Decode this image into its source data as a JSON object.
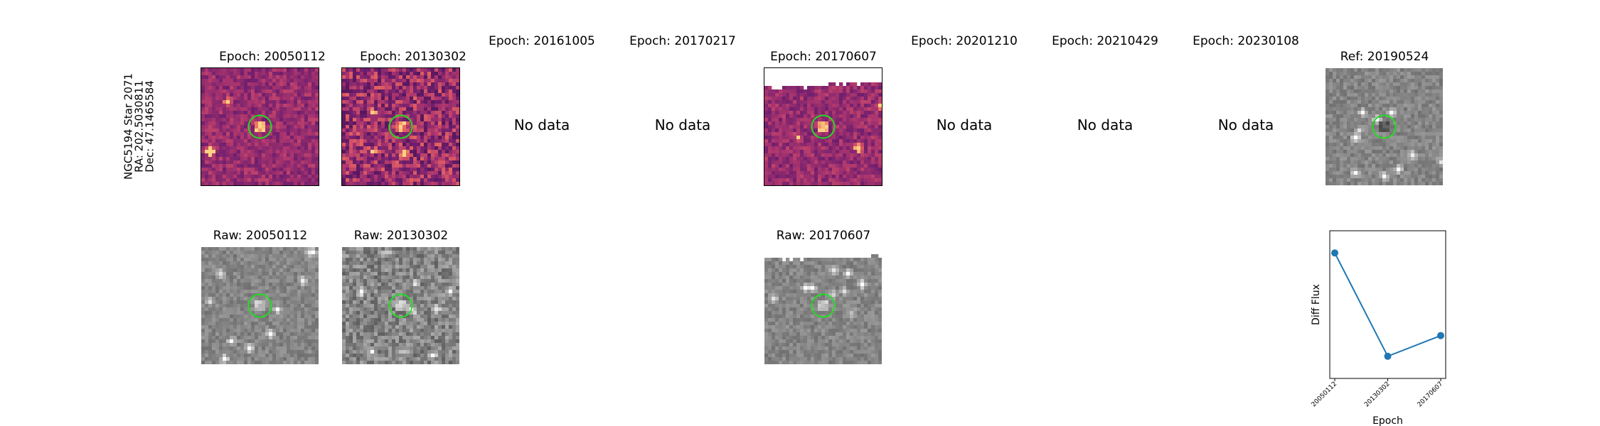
{
  "target": {
    "name": "NGC5194 Star 2071",
    "ra": "RA: 202.5030811",
    "dec": "Dec: 47.1465584"
  },
  "epochs": [
    {
      "id": "20050112",
      "title": "Epoch: 20050112",
      "has_data": true,
      "raw_title": "Raw: 20050112"
    },
    {
      "id": "20130302",
      "title": "Epoch: 20130302",
      "has_data": true,
      "raw_title": "Raw: 20130302"
    },
    {
      "id": "20161005",
      "title": "Epoch: 20161005",
      "has_data": false,
      "no_data_text": "No data"
    },
    {
      "id": "20170217",
      "title": "Epoch: 20170217",
      "has_data": false,
      "no_data_text": "No data"
    },
    {
      "id": "20170607",
      "title": "Epoch: 20170607",
      "has_data": true,
      "raw_title": "Raw: 20170607"
    },
    {
      "id": "20201210",
      "title": "Epoch: 20201210",
      "has_data": false,
      "no_data_text": "No data"
    },
    {
      "id": "20210429",
      "title": "Epoch: 20210429",
      "has_data": false,
      "no_data_text": "No data"
    },
    {
      "id": "20230108",
      "title": "Epoch: 20230108",
      "has_data": false,
      "no_data_text": "No data"
    }
  ],
  "reference": {
    "title": "Ref: 20190524"
  },
  "colors": {
    "aperture": "#22dd22",
    "line": "#1f77b4",
    "diff_base": "#7a2c6a",
    "raw_base": "#8a8a8a"
  },
  "chart_data": {
    "type": "line",
    "title": "",
    "xlabel": "Epoch",
    "ylabel": "Diff Flux",
    "categories": [
      "20050112",
      "20130302",
      "20170607"
    ],
    "values": [
      0.85,
      0.15,
      0.29
    ],
    "ylim": [
      0.0,
      1.0
    ],
    "grid": false,
    "y_ticks_shown": false
  }
}
